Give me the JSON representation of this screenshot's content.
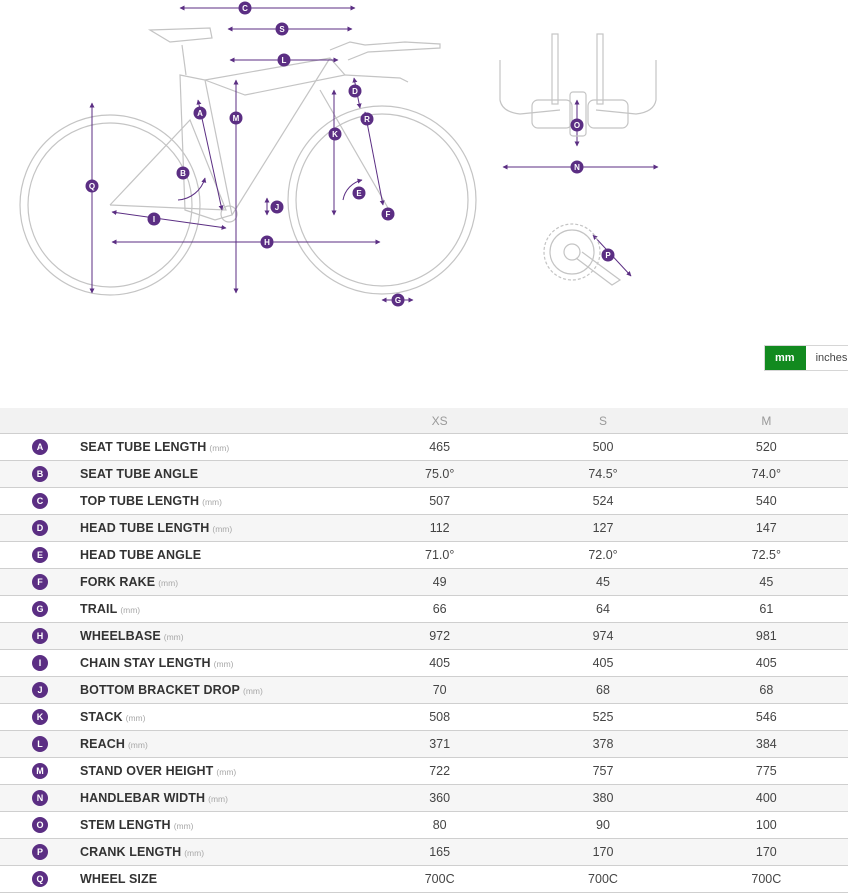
{
  "diagram": {
    "bike_labels": [
      "A",
      "B",
      "C",
      "D",
      "E",
      "F",
      "G",
      "H",
      "I",
      "J",
      "K",
      "L",
      "M",
      "Q",
      "R",
      "S"
    ],
    "bars_labels": [
      "N",
      "O"
    ],
    "crank_label": "P"
  },
  "unit_toggle": {
    "options": [
      "mm",
      "inches"
    ],
    "selected": "mm"
  },
  "table": {
    "sizes": [
      "XS",
      "S",
      "M"
    ],
    "rows": [
      {
        "badge": "A",
        "name": "SEAT TUBE LENGTH",
        "unit": "(mm)",
        "values": [
          "465",
          "500",
          "520"
        ]
      },
      {
        "badge": "B",
        "name": "SEAT TUBE ANGLE",
        "unit": "",
        "values": [
          "75.0°",
          "74.5°",
          "74.0°"
        ]
      },
      {
        "badge": "C",
        "name": "TOP TUBE LENGTH",
        "unit": "(mm)",
        "values": [
          "507",
          "524",
          "540"
        ]
      },
      {
        "badge": "D",
        "name": "HEAD TUBE LENGTH",
        "unit": "(mm)",
        "values": [
          "112",
          "127",
          "147"
        ]
      },
      {
        "badge": "E",
        "name": "HEAD TUBE ANGLE",
        "unit": "",
        "values": [
          "71.0°",
          "72.0°",
          "72.5°"
        ]
      },
      {
        "badge": "F",
        "name": "FORK RAKE",
        "unit": "(mm)",
        "values": [
          "49",
          "45",
          "45"
        ]
      },
      {
        "badge": "G",
        "name": "TRAIL",
        "unit": "(mm)",
        "values": [
          "66",
          "64",
          "61"
        ]
      },
      {
        "badge": "H",
        "name": "WHEELBASE",
        "unit": "(mm)",
        "values": [
          "972",
          "974",
          "981"
        ]
      },
      {
        "badge": "I",
        "name": "CHAIN STAY LENGTH",
        "unit": "(mm)",
        "values": [
          "405",
          "405",
          "405"
        ]
      },
      {
        "badge": "J",
        "name": "BOTTOM BRACKET DROP",
        "unit": "(mm)",
        "values": [
          "70",
          "68",
          "68"
        ]
      },
      {
        "badge": "K",
        "name": "STACK",
        "unit": "(mm)",
        "values": [
          "508",
          "525",
          "546"
        ]
      },
      {
        "badge": "L",
        "name": "REACH",
        "unit": "(mm)",
        "values": [
          "371",
          "378",
          "384"
        ]
      },
      {
        "badge": "M",
        "name": "STAND OVER HEIGHT",
        "unit": "(mm)",
        "values": [
          "722",
          "757",
          "775"
        ]
      },
      {
        "badge": "N",
        "name": "HANDLEBAR WIDTH",
        "unit": "(mm)",
        "values": [
          "360",
          "380",
          "400"
        ]
      },
      {
        "badge": "O",
        "name": "STEM LENGTH",
        "unit": "(mm)",
        "values": [
          "80",
          "90",
          "100"
        ]
      },
      {
        "badge": "P",
        "name": "CRANK LENGTH",
        "unit": "(mm)",
        "values": [
          "165",
          "170",
          "170"
        ]
      },
      {
        "badge": "Q",
        "name": "WHEEL SIZE",
        "unit": "",
        "values": [
          "700C",
          "700C",
          "700C"
        ]
      }
    ]
  },
  "colors": {
    "accent": "#5b2e83",
    "toggle_active": "#128a1f"
  }
}
